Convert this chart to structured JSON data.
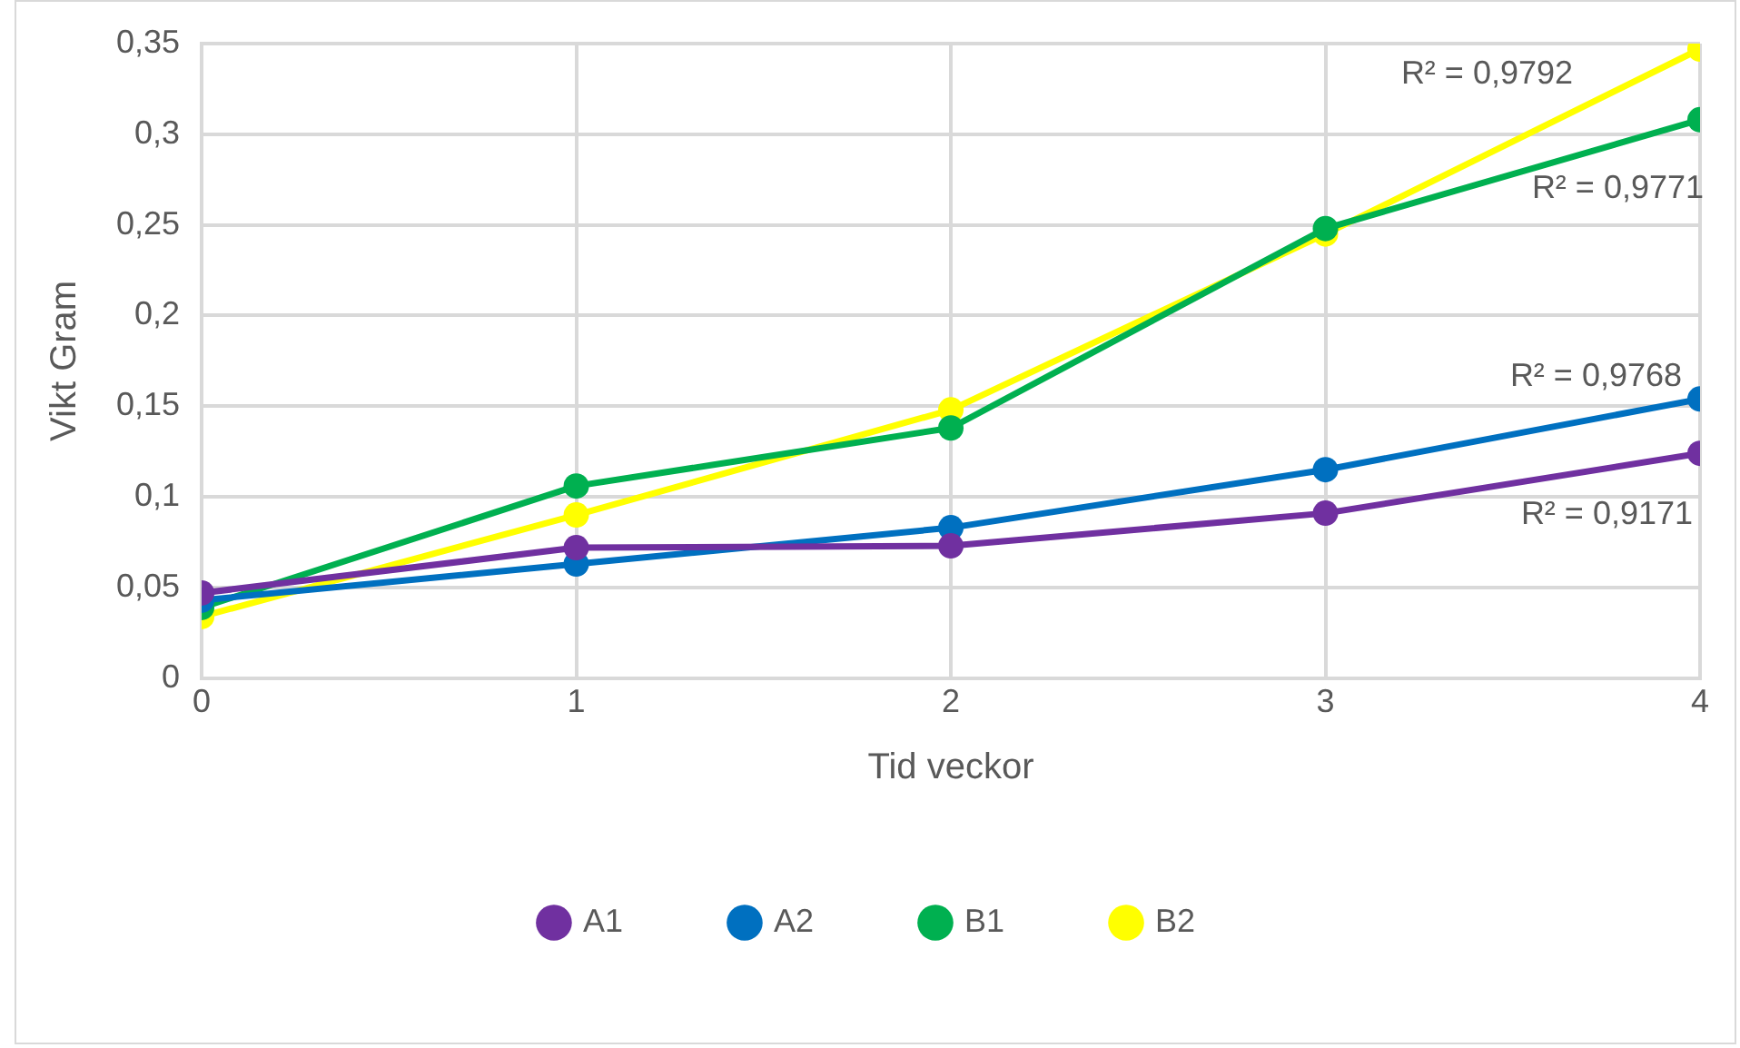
{
  "chart_data": {
    "type": "line",
    "xlabel": "Tid veckor",
    "ylabel": "Vikt Gram",
    "x": [
      0,
      1,
      2,
      3,
      4
    ],
    "series": [
      {
        "name": "A1",
        "color": "#7030a0",
        "values": [
          0.047,
          0.072,
          0.073,
          0.091,
          0.124
        ]
      },
      {
        "name": "A2",
        "color": "#0070c0",
        "values": [
          0.043,
          0.063,
          0.083,
          0.115,
          0.154
        ]
      },
      {
        "name": "B1",
        "color": "#00b050",
        "values": [
          0.039,
          0.106,
          0.138,
          0.248,
          0.308
        ]
      },
      {
        "name": "B2",
        "color": "#ffff00",
        "values": [
          0.034,
          0.09,
          0.148,
          0.245,
          0.347
        ]
      }
    ],
    "xlim": [
      0,
      4
    ],
    "xticks": [
      0,
      1,
      2,
      3,
      4
    ],
    "ylim": [
      0,
      0.35
    ],
    "yticks": [
      0,
      {
        "value": 0.05,
        "label": "0,05"
      },
      {
        "value": 0.1,
        "label": "0,1"
      },
      {
        "value": 0.15,
        "label": "0,15"
      },
      {
        "value": 0.2,
        "label": "0,2"
      },
      {
        "value": 0.25,
        "label": "0,25"
      },
      {
        "value": 0.3,
        "label": "0,3"
      },
      {
        "value": 0.35,
        "label": "0,35"
      }
    ],
    "annotations": [
      "R² = 0,9792",
      "R² = 0,9771",
      "R² = 0,9768",
      "R² = 0,9171"
    ],
    "grid": true,
    "legend": "bottom",
    "marker": "circle",
    "line_style": "solid"
  }
}
